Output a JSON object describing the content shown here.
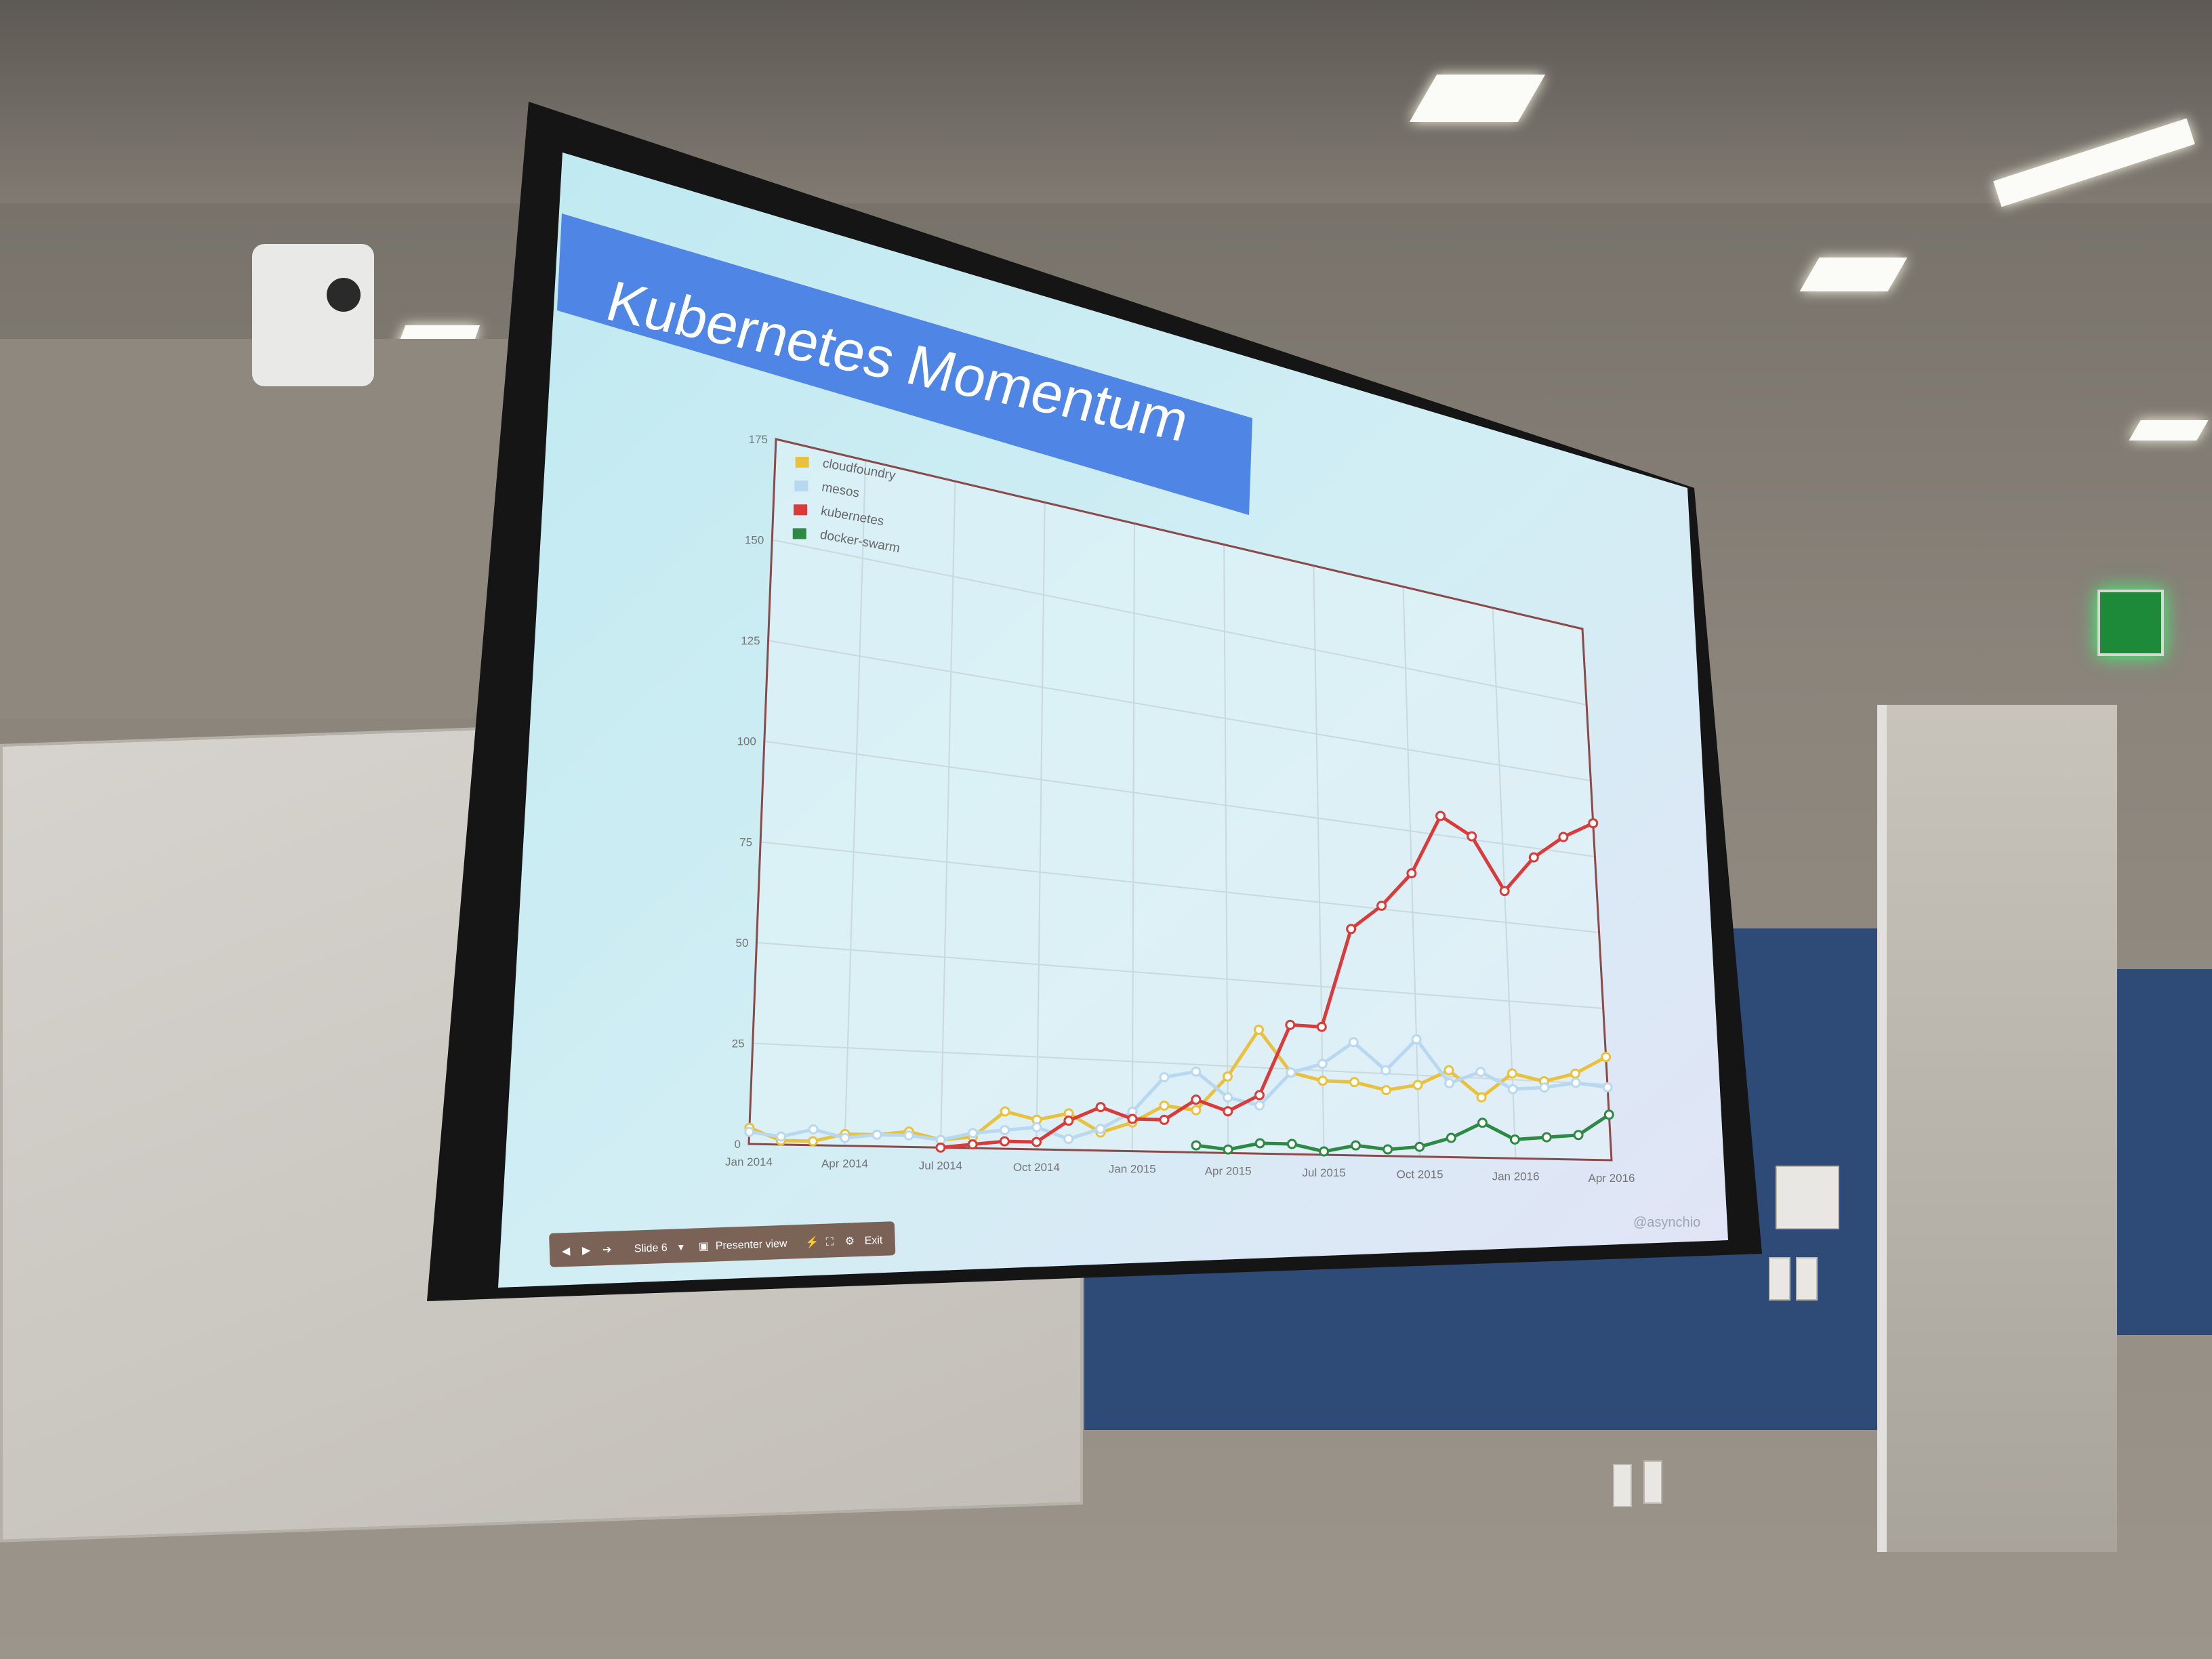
{
  "slide": {
    "title": "Kubernetes Momentum",
    "handle": "@asynchio"
  },
  "toolbar": {
    "slide_label": "Slide 6",
    "presenter_label": "Presenter view",
    "exit_label": "Exit"
  },
  "colors": {
    "title_bar": "#4f86e6",
    "cloudfoundry": "#e8c23f",
    "mesos": "#b8d8f2",
    "kubernetes": "#d93a3a",
    "docker_swarm": "#2c8a44"
  },
  "chart_data": {
    "type": "line",
    "x": [
      "Jan 2014",
      "Feb 2014",
      "Mar 2014",
      "Apr 2014",
      "May 2014",
      "Jun 2014",
      "Jul 2014",
      "Aug 2014",
      "Sep 2014",
      "Oct 2014",
      "Nov 2014",
      "Dec 2014",
      "Jan 2015",
      "Feb 2015",
      "Mar 2015",
      "Apr 2015",
      "May 2015",
      "Jun 2015",
      "Jul 2015",
      "Aug 2015",
      "Sep 2015",
      "Oct 2015",
      "Nov 2015",
      "Dec 2015",
      "Jan 2016",
      "Feb 2016",
      "Mar 2016",
      "Apr 2016"
    ],
    "x_tick_labels": [
      "Jan 2014",
      "Apr 2014",
      "Jul 2014",
      "Oct 2014",
      "Jan 2015",
      "Apr 2015",
      "Jul 2015",
      "Oct 2015",
      "Jan 2016",
      "Apr 2016"
    ],
    "x_tick_index": [
      0,
      3,
      6,
      9,
      12,
      15,
      18,
      21,
      24,
      27
    ],
    "ylim": [
      0,
      175
    ],
    "y_ticks": [
      0,
      25,
      50,
      75,
      100,
      125,
      150,
      175
    ],
    "grid": true,
    "legend_position": "top-left",
    "series": [
      {
        "name": "cloudfoundry",
        "color": "#e8c23f",
        "values": [
          4,
          1,
          1,
          3,
          3,
          4,
          2,
          3,
          10,
          8,
          10,
          5,
          8,
          13,
          12,
          22,
          36,
          24,
          22,
          22,
          20,
          22,
          27,
          19,
          27,
          25,
          28,
          34
        ]
      },
      {
        "name": "mesos",
        "color": "#b8d8f2",
        "values": [
          3,
          2,
          4,
          2,
          3,
          3,
          2,
          4,
          5,
          6,
          3,
          6,
          11,
          21,
          23,
          16,
          14,
          24,
          27,
          34,
          26,
          36,
          23,
          27,
          22,
          23,
          25,
          24
        ]
      },
      {
        "name": "kubernetes",
        "color": "#d93a3a",
        "values": [
          null,
          null,
          null,
          null,
          null,
          null,
          0,
          1,
          2,
          2,
          8,
          12,
          9,
          9,
          15,
          12,
          17,
          38,
          38,
          68,
          76,
          87,
          106,
          101,
          85,
          97,
          105,
          111
        ]
      },
      {
        "name": "docker-swarm",
        "color": "#2c8a44",
        "values": [
          null,
          null,
          null,
          null,
          null,
          null,
          null,
          null,
          null,
          null,
          null,
          null,
          null,
          null,
          2,
          1,
          3,
          3,
          1,
          3,
          2,
          3,
          6,
          11,
          6,
          7,
          8,
          15
        ]
      }
    ]
  }
}
